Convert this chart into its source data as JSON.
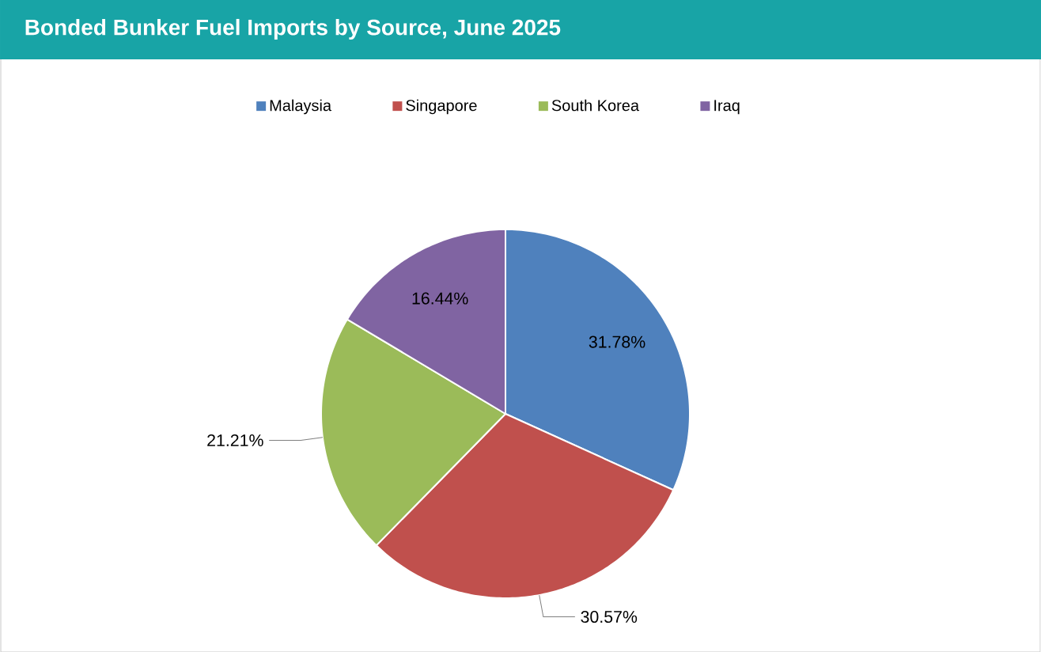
{
  "chart_data": {
    "type": "pie",
    "title": "Bonded Bunker Fuel Imports by Source, June 2025",
    "categories": [
      "Malaysia",
      "Singapore",
      "South Korea",
      "Iraq"
    ],
    "values": [
      31.78,
      30.57,
      21.21,
      16.44
    ],
    "value_labels": [
      "31.78%",
      "30.57%",
      "21.21%",
      "16.44%"
    ],
    "colors": [
      "#4f81bd",
      "#c0504d",
      "#9bbb59",
      "#8064a2"
    ],
    "legend": "top"
  }
}
